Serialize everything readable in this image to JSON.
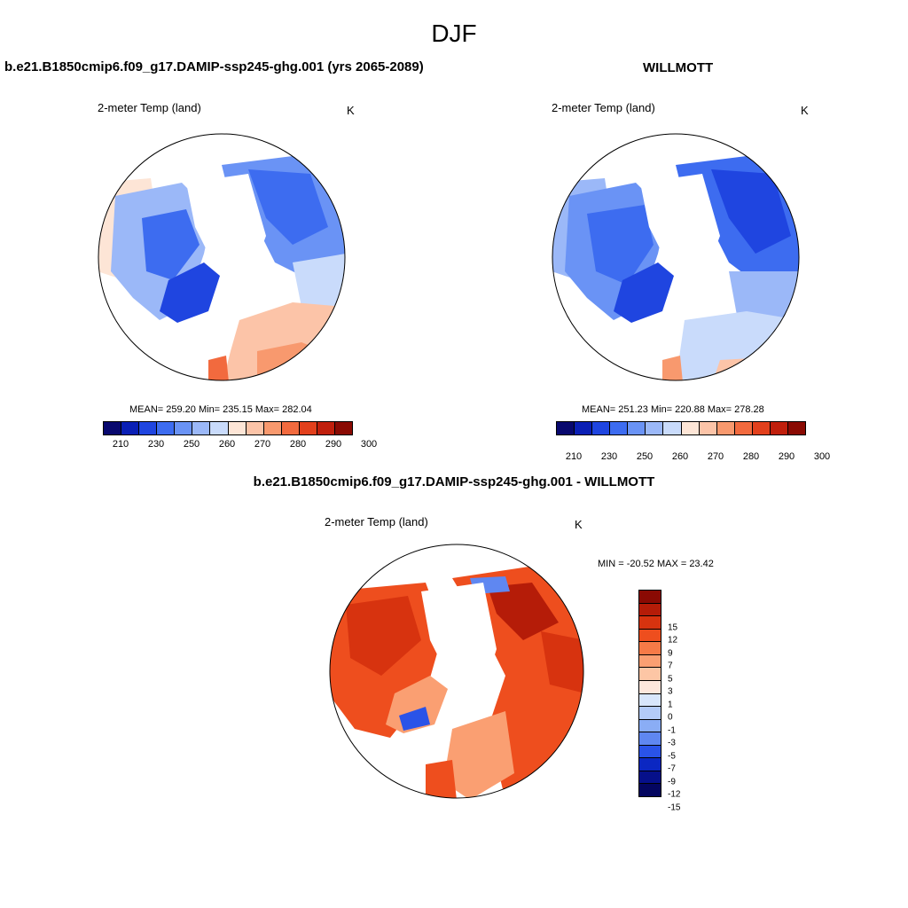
{
  "figure": {
    "season": "DJF"
  },
  "panels": {
    "model": {
      "title": "b.e21.B1850cmip6.f09_g17.DAMIP-ssp245-ghg.001 (yrs 2065-2089)",
      "variable": "2-meter Temp (land)",
      "units": "K",
      "stats": "MEAN= 259.20  Min= 235.15  Max= 282.04",
      "legend_ticks": [
        "210",
        "230",
        "250",
        "260",
        "270",
        "280",
        "290",
        "300"
      ]
    },
    "obs": {
      "title": "WILLMOTT",
      "variable": "2-meter Temp (land)",
      "units": "K",
      "stats": "MEAN= 251.23  Min= 220.88  Max= 278.28",
      "legend_ticks": [
        "210",
        "230",
        "250",
        "260",
        "270",
        "280",
        "290",
        "300"
      ]
    },
    "diff": {
      "title": "b.e21.B1850cmip6.f09_g17.DAMIP-ssp245-ghg.001 - WILLMOTT",
      "variable": "2-meter Temp (land)",
      "units": "K",
      "stats": "MIN = -20.52 MAX =  23.42",
      "legend_ticks": [
        "15",
        "12",
        "9",
        "7",
        "5",
        "3",
        "1",
        "0",
        "-1",
        "-3",
        "-5",
        "-7",
        "-9",
        "-12",
        "-15"
      ]
    }
  },
  "colors": {
    "abs_scale": [
      "#08086e",
      "#0a1fb5",
      "#1f45e0",
      "#3d6cf0",
      "#6a93f5",
      "#9bb8f8",
      "#c9dbfb",
      "#fde5d6",
      "#fcc4a8",
      "#f8996e",
      "#f26a3e",
      "#e2401c",
      "#c01f0c",
      "#8a0a03"
    ],
    "diff_scale": [
      "#8a0a03",
      "#b51c08",
      "#d7330f",
      "#ee4e1e",
      "#f67a47",
      "#fa9f72",
      "#fdc6a5",
      "#fde7dc",
      "#d8e6fb",
      "#b3cbf8",
      "#8aadf5",
      "#5f87f1",
      "#2a53e8",
      "#0b27c2",
      "#06108a",
      "#040660"
    ]
  }
}
